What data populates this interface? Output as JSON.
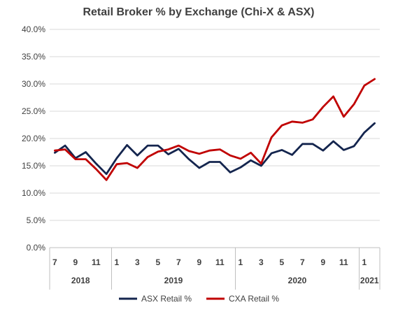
{
  "chart_data": {
    "type": "line",
    "title": "Retail Broker % by Exchange (Chi-X & ASX)",
    "ylim": [
      0,
      40
    ],
    "yticks": [
      "0.0%",
      "5.0%",
      "10.0%",
      "15.0%",
      "20.0%",
      "25.0%",
      "30.0%",
      "35.0%",
      "40.0%"
    ],
    "grid": true,
    "legend_position": "bottom",
    "x_month_labels": [
      "7",
      "",
      "9",
      "",
      "11",
      "",
      "1",
      "",
      "3",
      "",
      "5",
      "",
      "7",
      "",
      "9",
      "",
      "11",
      "",
      "1",
      "",
      "3",
      "",
      "5",
      "",
      "7",
      "",
      "9",
      "",
      "11",
      "",
      "1",
      ""
    ],
    "x_year_groups": [
      {
        "label": "2018",
        "count": 6
      },
      {
        "label": "2019",
        "count": 12
      },
      {
        "label": "2020",
        "count": 12
      },
      {
        "label": "2021",
        "count": 2
      }
    ],
    "series": [
      {
        "name": "ASX Retail %",
        "color": "#14254E",
        "values": [
          17.4,
          18.7,
          16.4,
          17.5,
          15.4,
          13.5,
          16.4,
          18.8,
          16.9,
          18.7,
          18.7,
          17.1,
          18.1,
          16.2,
          14.6,
          15.7,
          15.7,
          13.8,
          14.7,
          16.0,
          15.0,
          17.3,
          17.9,
          17.0,
          19.0,
          19.0,
          17.8,
          19.5,
          17.9,
          18.6,
          21.1,
          22.8
        ]
      },
      {
        "name": "CXA Retail %",
        "color": "#C00000",
        "values": [
          17.8,
          18.0,
          16.2,
          16.2,
          14.4,
          12.4,
          15.3,
          15.5,
          14.6,
          16.6,
          17.6,
          18.0,
          18.7,
          17.7,
          17.2,
          17.8,
          18.0,
          16.9,
          16.3,
          17.4,
          15.4,
          20.2,
          22.4,
          23.1,
          22.9,
          23.5,
          25.8,
          27.7,
          24.0,
          26.3,
          29.7,
          30.9
        ]
      }
    ]
  }
}
